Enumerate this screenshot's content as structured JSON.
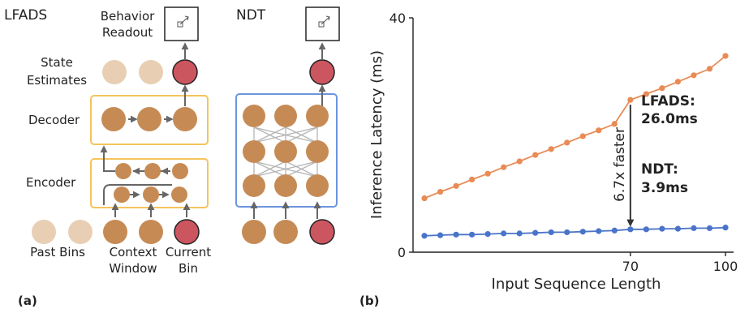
{
  "panel_a": {
    "label": "(a)",
    "lfads_title": "LFADS",
    "ndt_title": "NDT",
    "behavior_readout": [
      "Behavior",
      "Readout"
    ],
    "state_estimates": [
      "State",
      "Estimates"
    ],
    "decoder": "Decoder",
    "encoder": "Encoder",
    "past_bins": "Past Bins",
    "context_window": [
      "Context",
      "Window"
    ],
    "current_bin": [
      "Current",
      "Bin"
    ]
  },
  "panel_b": {
    "label": "(b)"
  },
  "colors": {
    "lfads": "#e98b55",
    "ndt": "#4a74c9",
    "lfads_title": "#f2bf4e",
    "ndt_title": "#6d95dd",
    "node": "#c68b55",
    "node_faded": "#e8cfb3",
    "node_current": "#cc5660",
    "lfads_box": "#f5c45c",
    "ndt_box": "#6d95dd"
  },
  "chart_data": {
    "type": "line",
    "xlabel": "Input Sequence Length",
    "ylabel": "Inference Latency (ms)",
    "xlim": [
      5,
      100
    ],
    "ylim": [
      0,
      40
    ],
    "xticks": [
      70,
      100
    ],
    "yticks": [
      0,
      40
    ],
    "series": [
      {
        "name": "LFADS",
        "x": [
          5,
          10,
          15,
          20,
          25,
          30,
          35,
          40,
          45,
          50,
          55,
          60,
          65,
          70,
          75,
          80,
          85,
          90,
          95,
          100
        ],
        "values": [
          9.2,
          10.3,
          11.3,
          12.4,
          13.4,
          14.5,
          15.5,
          16.6,
          17.6,
          18.7,
          19.8,
          20.8,
          21.9,
          26.0,
          27.0,
          28.0,
          29.1,
          30.2,
          31.3,
          33.5
        ]
      },
      {
        "name": "NDT",
        "x": [
          5,
          10,
          15,
          20,
          25,
          30,
          35,
          40,
          45,
          50,
          55,
          60,
          65,
          70,
          75,
          80,
          85,
          90,
          95,
          100
        ],
        "values": [
          2.8,
          2.9,
          3.0,
          3.0,
          3.1,
          3.2,
          3.2,
          3.3,
          3.4,
          3.4,
          3.5,
          3.6,
          3.7,
          3.9,
          3.9,
          4.0,
          4.0,
          4.1,
          4.1,
          4.2
        ]
      }
    ],
    "annotations": {
      "lfads_label": [
        "LFADS:",
        "26.0ms"
      ],
      "ndt_label": [
        "NDT:",
        "3.9ms"
      ],
      "speedup": "6.7x faster",
      "speedup_x": 70
    }
  }
}
